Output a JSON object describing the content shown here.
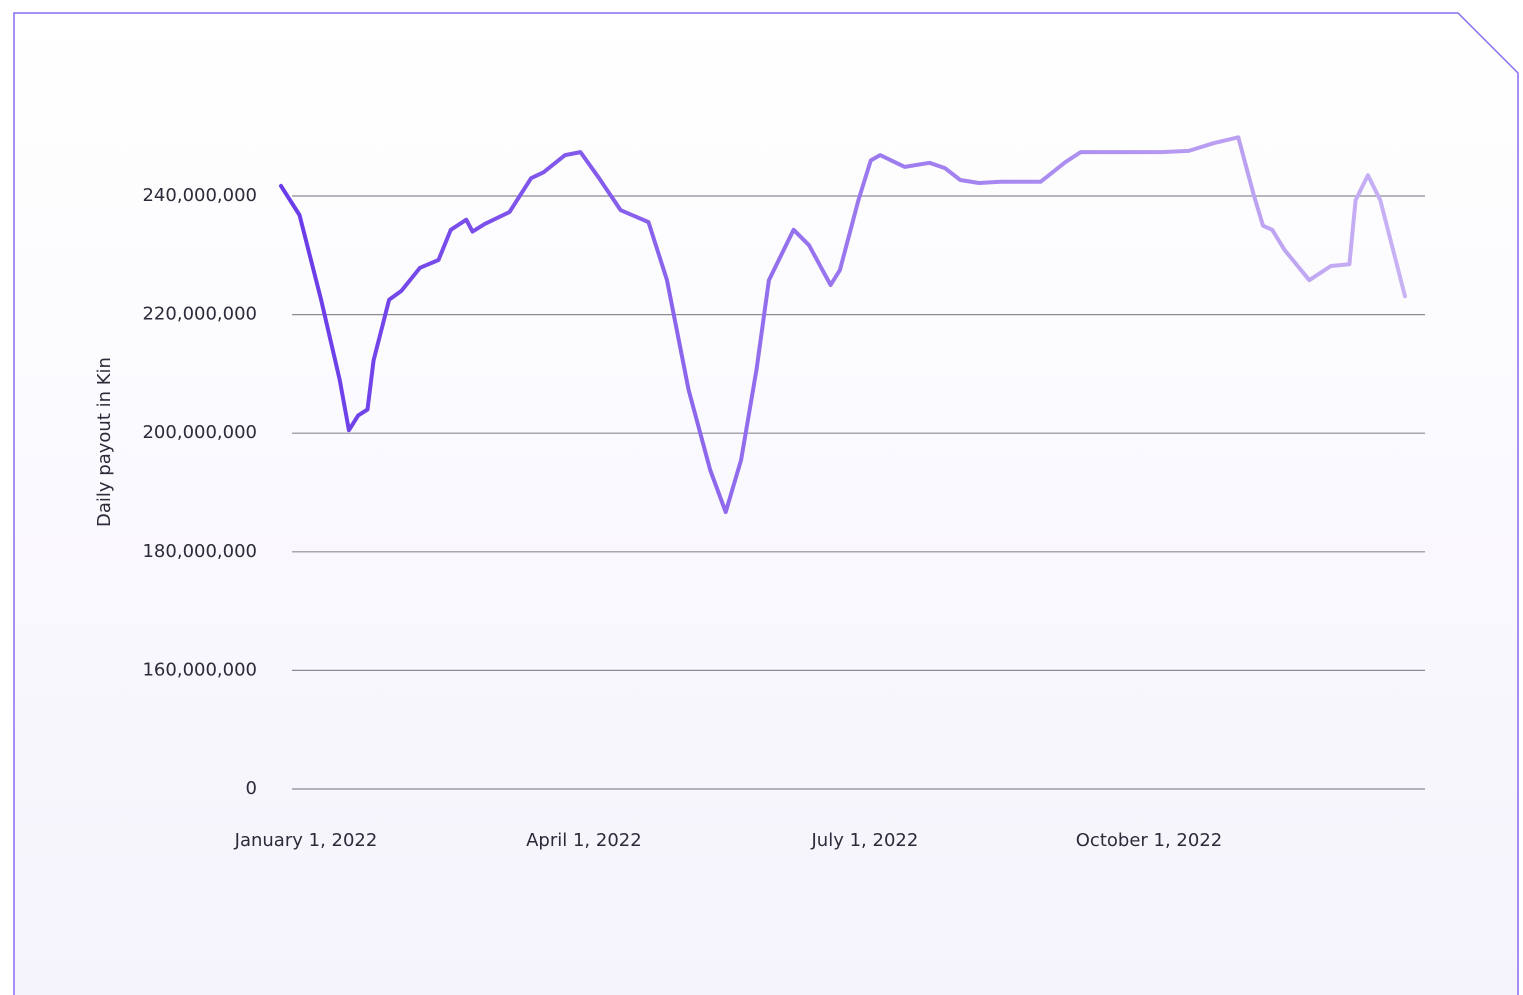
{
  "chart_data": {
    "type": "line",
    "y_label": "Daily payout in Kin",
    "x": [
      "2022-01-01",
      "2022-01-07",
      "2022-01-14",
      "2022-01-20",
      "2022-01-23",
      "2022-01-26",
      "2022-01-29",
      "2022-01-31",
      "2022-02-05",
      "2022-02-09",
      "2022-02-15",
      "2022-02-21",
      "2022-02-25",
      "2022-03-02",
      "2022-03-04",
      "2022-03-08",
      "2022-03-16",
      "2022-03-23",
      "2022-03-27",
      "2022-04-03",
      "2022-04-08",
      "2022-04-14",
      "2022-04-21",
      "2022-04-30",
      "2022-05-06",
      "2022-05-13",
      "2022-05-20",
      "2022-05-25",
      "2022-05-30",
      "2022-06-04",
      "2022-06-08",
      "2022-06-16",
      "2022-06-21",
      "2022-06-28",
      "2022-07-01",
      "2022-07-07",
      "2022-07-11",
      "2022-07-14",
      "2022-07-22",
      "2022-07-30",
      "2022-08-04",
      "2022-08-09",
      "2022-08-15",
      "2022-08-22",
      "2022-09-04",
      "2022-09-12",
      "2022-09-17",
      "2022-09-30",
      "2022-10-13",
      "2022-10-22",
      "2022-10-30",
      "2022-11-07",
      "2022-11-12",
      "2022-11-15",
      "2022-11-18",
      "2022-11-22",
      "2022-11-30",
      "2022-12-07",
      "2022-12-13",
      "2022-12-15",
      "2022-12-19",
      "2022-12-23",
      "2022-12-31"
    ],
    "series": [
      {
        "name": "Daily payout",
        "colors": [
          "#6a3be8",
          "#c9b2f4"
        ],
        "values": [
          241700000,
          236800000,
          222500000,
          209000000,
          200500000,
          203000000,
          204000000,
          212300000,
          222500000,
          224000000,
          227900000,
          229200000,
          234300000,
          236000000,
          234000000,
          235300000,
          237300000,
          243000000,
          244000000,
          246900000,
          247400000,
          243000000,
          237600000,
          235600000,
          225800000,
          207300000,
          193800000,
          186700000,
          195500000,
          210700000,
          225800000,
          234300000,
          231700000,
          225000000,
          227500000,
          239300000,
          246000000,
          246900000,
          244900000,
          245600000,
          244700000,
          242700000,
          242200000,
          242400000,
          242400000,
          245700000,
          247400000,
          247400000,
          247400000,
          247600000,
          248900000,
          249900000,
          240200000,
          235000000,
          234300000,
          230900000,
          225800000,
          228200000,
          228500000,
          239300000,
          243500000,
          239300000,
          223100000
        ]
      }
    ],
    "xlim": [
      "2022-01-01",
      "2022-12-31"
    ],
    "xticks": [
      {
        "value": "2022-01-01",
        "label": "January 1, 2022"
      },
      {
        "value": "2022-04-01",
        "label": "April 1, 2022"
      },
      {
        "value": "2022-07-01",
        "label": "July 1, 2022"
      },
      {
        "value": "2022-10-01",
        "label": "October 1, 2022"
      }
    ],
    "ylim": [
      0,
      250000000
    ],
    "yticks": [
      0,
      {
        "value": 160000000,
        "label": "160,000,000"
      },
      {
        "value": 180000000,
        "label": "180,000,000"
      },
      {
        "value": 200000000,
        "label": "200,000,000"
      },
      {
        "value": 220000000,
        "label": "220,000,000"
      },
      {
        "value": 240000000,
        "label": "240,000,000"
      }
    ],
    "grid": true
  }
}
